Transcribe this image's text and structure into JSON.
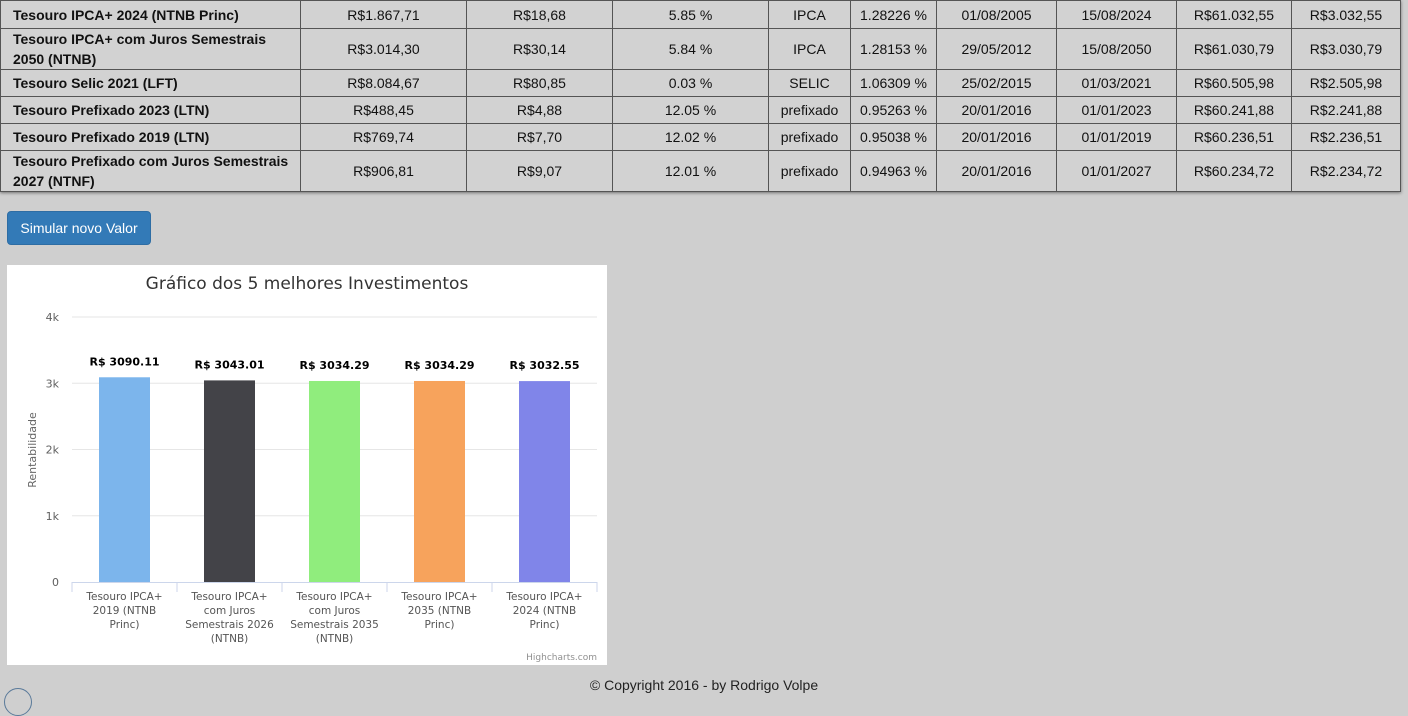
{
  "table": {
    "rows": [
      {
        "name": "Tesouro IPCA+ 2024 (NTNB Princ)",
        "price": "R$1.867,71",
        "min": "R$18,68",
        "rate": "5.85 %",
        "index": "IPCA",
        "pct": "1.28226 %",
        "start": "01/08/2005",
        "end": "15/08/2024",
        "total": "R$61.032,55",
        "gain": "R$3.032,55"
      },
      {
        "name": "Tesouro IPCA+ com Juros Semestrais 2050 (NTNB)",
        "price": "R$3.014,30",
        "min": "R$30,14",
        "rate": "5.84 %",
        "index": "IPCA",
        "pct": "1.28153 %",
        "start": "29/05/2012",
        "end": "15/08/2050",
        "total": "R$61.030,79",
        "gain": "R$3.030,79"
      },
      {
        "name": "Tesouro Selic 2021 (LFT)",
        "price": "R$8.084,67",
        "min": "R$80,85",
        "rate": "0.03 %",
        "index": "SELIC",
        "pct": "1.06309 %",
        "start": "25/02/2015",
        "end": "01/03/2021",
        "total": "R$60.505,98",
        "gain": "R$2.505,98"
      },
      {
        "name": "Tesouro Prefixado 2023 (LTN)",
        "price": "R$488,45",
        "min": "R$4,88",
        "rate": "12.05 %",
        "index": "prefixado",
        "pct": "0.95263 %",
        "start": "20/01/2016",
        "end": "01/01/2023",
        "total": "R$60.241,88",
        "gain": "R$2.241,88"
      },
      {
        "name": "Tesouro Prefixado 2019 (LTN)",
        "price": "R$769,74",
        "min": "R$7,70",
        "rate": "12.02 %",
        "index": "prefixado",
        "pct": "0.95038 %",
        "start": "20/01/2016",
        "end": "01/01/2019",
        "total": "R$60.236,51",
        "gain": "R$2.236,51"
      },
      {
        "name": "Tesouro Prefixado com Juros Semestrais 2027 (NTNF)",
        "price": "R$906,81",
        "min": "R$9,07",
        "rate": "12.01 %",
        "index": "prefixado",
        "pct": "0.94963 %",
        "start": "20/01/2016",
        "end": "01/01/2027",
        "total": "R$60.234,72",
        "gain": "R$2.234,72"
      }
    ]
  },
  "simulate_button": {
    "label": "Simular novo Valor",
    "color": "#337ab7"
  },
  "chart_data": {
    "type": "bar",
    "title": "Gráfico dos 5 melhores Investimentos",
    "xlabel": "",
    "ylabel": "Rentabilidade",
    "ylim": [
      0,
      4000
    ],
    "yticks": [
      0,
      1000,
      2000,
      3000,
      4000
    ],
    "ytick_labels": [
      "0",
      "1k",
      "2k",
      "3k",
      "4k"
    ],
    "grid": true,
    "legend": "none",
    "categories": [
      "Tesouro IPCA+ 2019 (NTNB Princ)",
      "Tesouro IPCA+ com Juros Semestrais 2026 (NTNB)",
      "Tesouro IPCA+ com Juros Semestrais 2035 (NTNB)",
      "Tesouro IPCA+ 2035 (NTNB Princ)",
      "Tesouro IPCA+ 2024 (NTNB Princ)"
    ],
    "category_lines": [
      [
        "Tesouro IPCA+",
        "2019 (NTNB",
        "Princ)"
      ],
      [
        "Tesouro IPCA+",
        "com Juros",
        "Semestrais 2026",
        "(NTNB)"
      ],
      [
        "Tesouro IPCA+",
        "com Juros",
        "Semestrais 2035",
        "(NTNB)"
      ],
      [
        "Tesouro IPCA+",
        "2035 (NTNB",
        "Princ)"
      ],
      [
        "Tesouro IPCA+",
        "2024 (NTNB",
        "Princ)"
      ]
    ],
    "values": [
      3090.11,
      3043.01,
      3034.29,
      3034.29,
      3032.55
    ],
    "data_labels": [
      "R$ 3090.11",
      "R$ 3043.01",
      "R$ 3034.29",
      "R$ 3034.29",
      "R$ 3032.55"
    ],
    "colors": [
      "#7cb5ec",
      "#434348",
      "#90ed7d",
      "#f7a35c",
      "#8085e9"
    ],
    "credits": "Highcharts.com"
  },
  "footer": {
    "text": "© Copyright 2016 - by Rodrigo Volpe"
  }
}
